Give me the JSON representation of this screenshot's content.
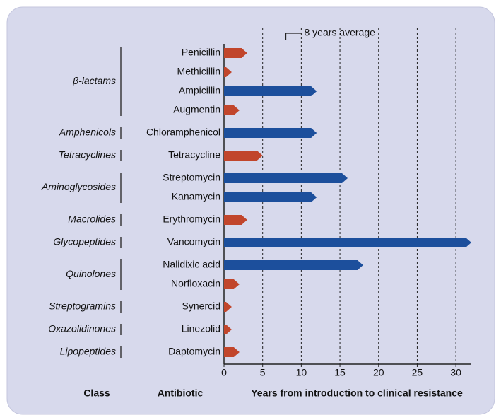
{
  "chart_data": {
    "type": "bar",
    "orientation": "horizontal",
    "annotation": "8 years average",
    "annotation_x": 8,
    "class_label": "Class",
    "category_label": "Antibiotic",
    "x_label": "Years from introduction to clinical resistance",
    "categories": [
      "Penicillin",
      "Methicillin",
      "Ampicillin",
      "Augmentin",
      "Chloramphenicol",
      "Tetracycline",
      "Streptomycin",
      "Kanamycin",
      "Erythromycin",
      "Vancomycin",
      "Nalidixic acid",
      "Norfloxacin",
      "Synercid",
      "Linezolid",
      "Daptomycin"
    ],
    "classes": [
      "β-lactams",
      "β-lactams",
      "β-lactams",
      "β-lactams",
      "Amphenicols",
      "Tetracyclines",
      "Aminoglycosides",
      "Aminoglycosides",
      "Macrolides",
      "Glycopeptides",
      "Quinolones",
      "Quinolones",
      "Streptogramins",
      "Oxazolidinones",
      "Lipopeptides"
    ],
    "values": [
      3,
      1,
      12,
      2,
      12,
      5,
      16,
      12,
      3,
      32,
      18,
      2,
      1,
      1,
      2
    ],
    "colors": [
      "#c1452b",
      "#c1452b",
      "#1c4f9c",
      "#c1452b",
      "#1c4f9c",
      "#c1452b",
      "#1c4f9c",
      "#1c4f9c",
      "#c1452b",
      "#1c4f9c",
      "#1c4f9c",
      "#c1452b",
      "#c1452b",
      "#c1452b",
      "#c1452b"
    ],
    "xlim": [
      0,
      32
    ],
    "xticks": [
      0,
      5,
      10,
      15,
      20,
      25,
      30
    ],
    "grid": true
  }
}
